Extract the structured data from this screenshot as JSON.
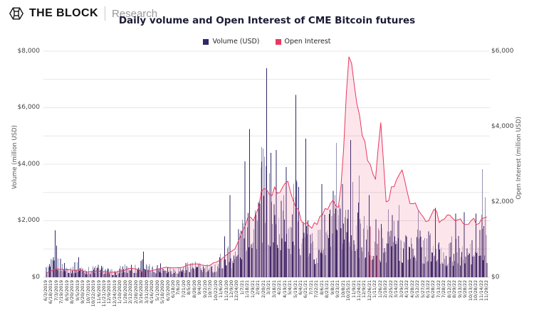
{
  "header": {
    "brand": "THE BLOCK",
    "sub": "Research"
  },
  "chart_data": {
    "type": "bar",
    "title": "Daily volume and Open Interest of CME Bitcoin futures",
    "legend_position": "top-center",
    "grid": "horizontal gridlines every 1000 (left scale), light gray",
    "categories": [
      "6/3/2019",
      "6/18/2019",
      "7/3/2019",
      "7/19/2019",
      "8/5/2019",
      "8/20/2019",
      "9/5/2019",
      "9/20/2019",
      "10/7/2019",
      "10/22/2019",
      "11/6/2019",
      "11/21/2019",
      "12/9/2019",
      "12/24/2019",
      "1/10/2020",
      "1/28/2020",
      "2/12/2020",
      "2/28/2020",
      "3/16/2020",
      "3/31/2020",
      "4/16/2020",
      "5/1/2020",
      "5/18/2020",
      "6/3/2020",
      "6/18/20",
      "7/6/20",
      "7/21/20",
      "8/5/20",
      "8/20/20",
      "9/4/20",
      "9/22/20",
      "10/7/20",
      "10/22/20",
      "11/6/20",
      "11/23/20",
      "12/9/20",
      "12/24/20",
      "1/7/21",
      "1/18/21",
      "1/29/21",
      "2/9/21",
      "2/20/21",
      "3/3/21",
      "3/18/21",
      "4/2/21",
      "4/19/21",
      "5/4/21",
      "5/19/21",
      "6/4/21",
      "6/21/21",
      "7/7/21",
      "7/22/21",
      "8/6/21",
      "8/23/21",
      "9/8/21",
      "9/23/21",
      "10/8/21",
      "10/25/21",
      "11/9/21",
      "11/24/21",
      "12/9/21",
      "12/26/21",
      "1/11/22",
      "1/26/22",
      "2/10/22",
      "2/25/22",
      "3/14/22",
      "3/29/22",
      "4/13/22",
      "4/28/22",
      "5/12/22",
      "5/27/22",
      "6/13/22",
      "6/28/22",
      "7/13/22",
      "7/28/22",
      "8/12/22",
      "8/29/22",
      "9/13/22",
      "9/28/22",
      "10/13/22",
      "10/28/22",
      "11/14/22",
      "11/29/22"
    ],
    "series": [
      {
        "name": "Volume (USD)",
        "type": "bar",
        "axis": "left",
        "unit": "million USD",
        "color": "#2d296a",
        "color_light": "#8d8bb4",
        "values": [
          300,
          480,
          600,
          430,
          380,
          340,
          430,
          300,
          260,
          320,
          340,
          280,
          210,
          180,
          300,
          360,
          400,
          330,
          550,
          350,
          300,
          380,
          400,
          330,
          280,
          310,
          350,
          480,
          430,
          380,
          350,
          310,
          430,
          700,
          950,
          800,
          850,
          1700,
          2600,
          2100,
          2700,
          3300,
          2600,
          2300,
          2100,
          2400,
          2000,
          2600,
          1950,
          1500,
          1250,
          1150,
          1500,
          1750,
          2200,
          1750,
          2100,
          2800,
          2250,
          1750,
          1550,
          1350,
          1500,
          1400,
          1350,
          1800,
          1550,
          1350,
          1150,
          1250,
          1400,
          1150,
          1300,
          1050,
          950,
          900,
          1050,
          950,
          1100,
          1000,
          1050,
          950,
          1600,
          1050
        ]
      },
      {
        "name": "Open Interest",
        "type": "line",
        "axis": "right",
        "unit": "million USD",
        "color": "#e8395f",
        "area_fill": "rgba(233,62,105,0.13)",
        "values": [
          110,
          170,
          230,
          215,
          200,
          185,
          195,
          160,
          140,
          150,
          160,
          145,
          130,
          125,
          165,
          200,
          240,
          215,
          140,
          155,
          180,
          215,
          250,
          260,
          250,
          255,
          280,
          330,
          350,
          330,
          310,
          330,
          400,
          480,
          600,
          700,
          900,
          1250,
          1600,
          1500,
          1850,
          2350,
          2200,
          2400,
          2250,
          2500,
          2250,
          1850,
          1500,
          1450,
          1300,
          1400,
          1650,
          1800,
          2050,
          1850,
          3400,
          5850,
          5100,
          4300,
          3600,
          3000,
          2600,
          4100,
          2000,
          2400,
          2600,
          2850,
          2250,
          1950,
          1800,
          1600,
          1500,
          1800,
          1450,
          1550,
          1650,
          1500,
          1550,
          1400,
          1500,
          1400,
          1550,
          1600
        ]
      }
    ],
    "volume_spikes": [
      {
        "i": 1.7,
        "v": 1660
      },
      {
        "i": 1.95,
        "v": 1120
      },
      {
        "i": 6.1,
        "v": 700
      },
      {
        "i": 18.3,
        "v": 900
      },
      {
        "i": 33.6,
        "v": 1450
      },
      {
        "i": 34.6,
        "v": 2900
      },
      {
        "i": 36.2,
        "v": 1700
      },
      {
        "i": 37.4,
        "v": 4100
      },
      {
        "i": 38.3,
        "v": 5250
      },
      {
        "i": 40.6,
        "v": 4600
      },
      {
        "i": 41.5,
        "v": 7400
      },
      {
        "i": 42.3,
        "v": 4400
      },
      {
        "i": 43.3,
        "v": 4500
      },
      {
        "i": 45.2,
        "v": 3900
      },
      {
        "i": 47.0,
        "v": 6450
      },
      {
        "i": 48.9,
        "v": 4900
      },
      {
        "i": 51.9,
        "v": 3300
      },
      {
        "i": 54.6,
        "v": 4750
      },
      {
        "i": 55.8,
        "v": 3300
      },
      {
        "i": 57.3,
        "v": 4850
      },
      {
        "i": 58.9,
        "v": 3600
      },
      {
        "i": 60.8,
        "v": 2900
      },
      {
        "i": 64.4,
        "v": 2400
      },
      {
        "i": 66.4,
        "v": 2550
      },
      {
        "i": 70.1,
        "v": 2350
      },
      {
        "i": 73.3,
        "v": 2450
      },
      {
        "i": 77.1,
        "v": 2250
      },
      {
        "i": 78.7,
        "v": 2300
      },
      {
        "i": 80.9,
        "v": 2250
      },
      {
        "i": 82.1,
        "v": 3820
      },
      {
        "i": 82.7,
        "v": 2830
      }
    ],
    "left_axis": {
      "title": "Volume (million USD)",
      "tick_labels": [
        "$0",
        "$2,000",
        "$4,000",
        "$6,000",
        "$8,000"
      ],
      "tick_values": [
        0,
        2000,
        4000,
        6000,
        8000
      ],
      "max_value": 8000,
      "grid_step": 1000
    },
    "right_axis": {
      "title": "Open Interest (million USD)",
      "tick_labels": [
        "$0",
        "$2,000",
        "$4,000",
        "$6,000"
      ],
      "tick_values": [
        0,
        2000,
        4000,
        6000
      ],
      "max_value": 6000
    },
    "left_ylim": [
      0,
      8000
    ],
    "right_ylim": [
      0,
      6000
    ],
    "note_colors": {
      "gridline": "#e7e7e7",
      "baseline": "#d9d9d9",
      "title_text": "#1b1b36",
      "tick_text": "#444444",
      "maroon_bar_cluster": "#8a2f62"
    }
  }
}
